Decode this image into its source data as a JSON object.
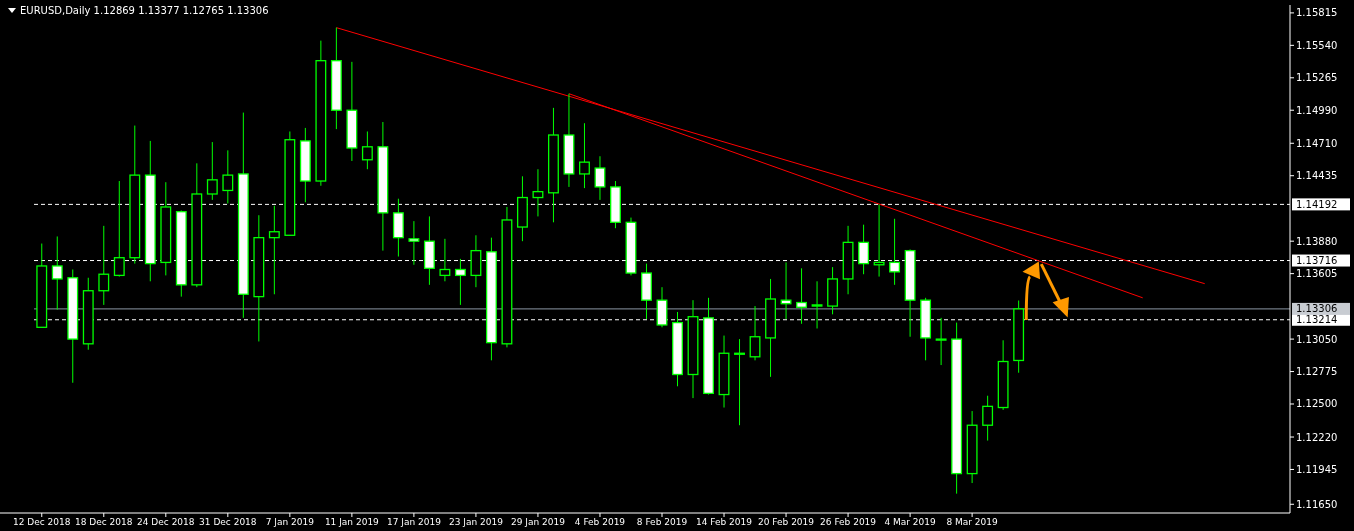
{
  "chart_data": {
    "type": "candlestick",
    "title": "EURUSD,Daily  1.12869 1.13377 1.12765 1.13306",
    "color": "#00ff00",
    "categories": [
      "12 Dec 2018",
      null,
      null,
      null,
      "18 Dec 2018",
      null,
      null,
      null,
      "24 Dec 2018",
      null,
      null,
      null,
      "31 Dec 2018",
      null,
      null,
      null,
      "7 Jan 2019",
      null,
      null,
      null,
      "11 Jan 2019",
      null,
      null,
      null,
      "17 Jan 2019",
      null,
      null,
      null,
      "23 Jan 2019",
      null,
      null,
      null,
      "29 Jan 2019",
      null,
      null,
      null,
      "4 Feb 2019",
      null,
      null,
      null,
      "8 Feb 2019",
      null,
      null,
      null,
      "14 Feb 2019",
      null,
      null,
      null,
      "20 Feb 2019",
      null,
      null,
      null,
      "26 Feb 2019",
      null,
      null,
      null,
      "4 Mar 2019",
      null,
      null,
      null,
      "8 Mar 2019",
      null,
      null,
      null,
      null,
      null,
      null,
      null,
      null,
      null,
      null,
      null,
      null,
      null,
      null,
      null,
      null,
      null,
      null,
      null,
      null
    ],
    "ohlc": [
      [
        1.1315,
        1.1386,
        1.1315,
        1.1367
      ],
      [
        1.1367,
        1.1392,
        1.133,
        1.1356
      ],
      [
        1.1357,
        1.1364,
        1.1268,
        1.1305
      ],
      [
        1.1301,
        1.1357,
        1.1296,
        1.1346
      ],
      [
        1.1346,
        1.1401,
        1.1334,
        1.136
      ],
      [
        1.1359,
        1.1439,
        1.1358,
        1.1374
      ],
      [
        1.1374,
        1.1486,
        1.1369,
        1.1444
      ],
      [
        1.1444,
        1.1473,
        1.1354,
        1.1369
      ],
      [
        1.137,
        1.1438,
        1.1359,
        1.1417
      ],
      [
        1.1413,
        1.1414,
        1.1341,
        1.1351
      ],
      [
        1.1351,
        1.1454,
        1.1349,
        1.1428
      ],
      [
        1.1428,
        1.1472,
        1.1423,
        1.144
      ],
      [
        1.1431,
        1.1465,
        1.142,
        1.1444
      ],
      [
        1.1445,
        1.1497,
        1.1323,
        1.1343
      ],
      [
        1.1341,
        1.141,
        1.1303,
        1.1391
      ],
      [
        1.1391,
        1.1418,
        1.1343,
        1.1396
      ],
      [
        1.1393,
        1.1481,
        1.1393,
        1.1474
      ],
      [
        1.1473,
        1.1484,
        1.1421,
        1.1439
      ],
      [
        1.1439,
        1.1558,
        1.1435,
        1.1541
      ],
      [
        1.1541,
        1.1569,
        1.1483,
        1.1499
      ],
      [
        1.1499,
        1.154,
        1.1456,
        1.1467
      ],
      [
        1.1457,
        1.1481,
        1.1449,
        1.1468
      ],
      [
        1.1468,
        1.1489,
        1.138,
        1.1412
      ],
      [
        1.1412,
        1.1424,
        1.1375,
        1.1391
      ],
      [
        1.139,
        1.1405,
        1.1368,
        1.1388
      ],
      [
        1.1388,
        1.1409,
        1.1351,
        1.1365
      ],
      [
        1.1359,
        1.139,
        1.1354,
        1.1364
      ],
      [
        1.1364,
        1.1373,
        1.1334,
        1.1359
      ],
      [
        1.1359,
        1.1393,
        1.1349,
        1.138
      ],
      [
        1.1379,
        1.1391,
        1.1287,
        1.1302
      ],
      [
        1.1301,
        1.1417,
        1.1298,
        1.1406
      ],
      [
        1.14,
        1.1443,
        1.1388,
        1.1425
      ],
      [
        1.1425,
        1.1449,
        1.1409,
        1.143
      ],
      [
        1.1429,
        1.1501,
        1.1404,
        1.1478
      ],
      [
        1.1478,
        1.1513,
        1.1434,
        1.1445
      ],
      [
        1.1445,
        1.1488,
        1.1433,
        1.1455
      ],
      [
        1.145,
        1.146,
        1.1423,
        1.1434
      ],
      [
        1.1434,
        1.1439,
        1.1399,
        1.1404
      ],
      [
        1.1404,
        1.1408,
        1.1359,
        1.1361
      ],
      [
        1.1361,
        1.1369,
        1.1322,
        1.1338
      ],
      [
        1.1338,
        1.1349,
        1.1315,
        1.1317
      ],
      [
        1.1319,
        1.1328,
        1.1265,
        1.1275
      ],
      [
        1.1275,
        1.1338,
        1.1255,
        1.1324
      ],
      [
        1.1323,
        1.134,
        1.1258,
        1.1259
      ],
      [
        1.1258,
        1.1308,
        1.1247,
        1.1293
      ],
      [
        1.1293,
        1.1305,
        1.1232,
        1.1293
      ],
      [
        1.129,
        1.1333,
        1.1287,
        1.1307
      ],
      [
        1.1306,
        1.1356,
        1.1273,
        1.1339
      ],
      [
        1.1338,
        1.137,
        1.1322,
        1.1335
      ],
      [
        1.1336,
        1.1365,
        1.1318,
        1.1332
      ],
      [
        1.1333,
        1.1354,
        1.1314,
        1.1334
      ],
      [
        1.1333,
        1.1366,
        1.1326,
        1.1356
      ],
      [
        1.1356,
        1.1401,
        1.1343,
        1.1387
      ],
      [
        1.1387,
        1.1402,
        1.136,
        1.1369
      ],
      [
        1.1368,
        1.1419,
        1.1358,
        1.137
      ],
      [
        1.137,
        1.1407,
        1.1351,
        1.1362
      ],
      [
        1.138,
        1.1381,
        1.1307,
        1.1338
      ],
      [
        1.1338,
        1.134,
        1.1287,
        1.1306
      ],
      [
        1.1305,
        1.1323,
        1.1283,
        1.1305
      ],
      [
        1.1305,
        1.1319,
        1.1174,
        1.1191
      ],
      [
        1.1191,
        1.1244,
        1.1183,
        1.1232
      ],
      [
        1.1232,
        1.1257,
        1.1219,
        1.1248
      ],
      [
        1.1247,
        1.1304,
        1.1245,
        1.1286
      ],
      [
        1.12869,
        1.13377,
        1.12765,
        1.13306
      ],
      null,
      null,
      null,
      null,
      null,
      null,
      null,
      null,
      null,
      null,
      null,
      null,
      null,
      null,
      null,
      null,
      null
    ],
    "ylim": [
      1.11576,
      1.15882
    ],
    "yticks": [
      {
        "value": 1.15815,
        "label": "1.15815"
      },
      {
        "value": 1.1554,
        "label": "1.15540"
      },
      {
        "value": 1.15265,
        "label": "1.15265"
      },
      {
        "value": 1.1499,
        "label": "1.14990"
      },
      {
        "value": 1.1471,
        "label": "1.14710"
      },
      {
        "value": 1.14435,
        "label": "1.14435"
      },
      {
        "value": 1.1388,
        "label": "1.13880"
      },
      {
        "value": 1.13605,
        "label": "1.13605"
      },
      {
        "value": 1.1305,
        "label": "1.13050"
      },
      {
        "value": 1.12775,
        "label": "1.12775"
      },
      {
        "value": 1.125,
        "label": "1.12500"
      },
      {
        "value": 1.1222,
        "label": "1.12220"
      },
      {
        "value": 1.11945,
        "label": "1.11945"
      },
      {
        "value": 1.1165,
        "label": "1.11650"
      }
    ],
    "series": [
      {
        "type": "line",
        "values": [
          null,
          null,
          null,
          null,
          null,
          null,
          null,
          null,
          null,
          null,
          null,
          null,
          null,
          null,
          null,
          null,
          null,
          null,
          null,
          1.1569,
          null,
          null,
          null,
          null,
          null,
          null,
          null,
          null,
          null,
          null,
          null,
          null,
          null,
          null,
          null,
          null,
          null,
          null,
          null,
          null,
          null,
          null,
          null,
          null,
          null,
          null,
          null,
          null,
          null,
          null,
          null,
          null,
          null,
          null,
          null,
          null,
          null,
          null,
          null,
          null,
          null,
          null,
          null,
          null,
          null,
          null,
          null,
          null,
          null,
          null,
          null,
          null,
          null,
          null,
          null,
          1.1352,
          null,
          null,
          null,
          null,
          null
        ],
        "color": "#ff0000"
      },
      {
        "type": "line",
        "values": [
          null,
          null,
          null,
          null,
          null,
          null,
          null,
          null,
          null,
          null,
          null,
          null,
          null,
          null,
          null,
          null,
          null,
          null,
          null,
          null,
          null,
          null,
          null,
          null,
          null,
          null,
          null,
          null,
          null,
          null,
          null,
          null,
          null,
          null,
          1.1513,
          null,
          null,
          null,
          null,
          null,
          null,
          null,
          null,
          null,
          null,
          null,
          null,
          null,
          null,
          null,
          null,
          null,
          null,
          null,
          null,
          null,
          null,
          null,
          null,
          null,
          null,
          null,
          null,
          null,
          null,
          null,
          null,
          null,
          null,
          null,
          null,
          1.134,
          null,
          null,
          null,
          null,
          null,
          null,
          null,
          null,
          null
        ],
        "color": "#ff0000"
      }
    ],
    "ref_lines": [
      {
        "axis": "y",
        "value": 1.14192,
        "label": "1.14192",
        "color": "#ffffff",
        "line_style": "dashed"
      },
      {
        "axis": "y",
        "value": 1.13716,
        "label": "1.13716",
        "color": "#ffffff",
        "line_style": "dashed"
      },
      {
        "axis": "y",
        "value": 1.13214,
        "label": "1.13214",
        "color": "#ffffff",
        "line_style": "dashed"
      },
      {
        "axis": "y",
        "value": 1.13306,
        "label": "1.13306",
        "color": "#8a96a3",
        "line_style": "solid"
      }
    ]
  }
}
